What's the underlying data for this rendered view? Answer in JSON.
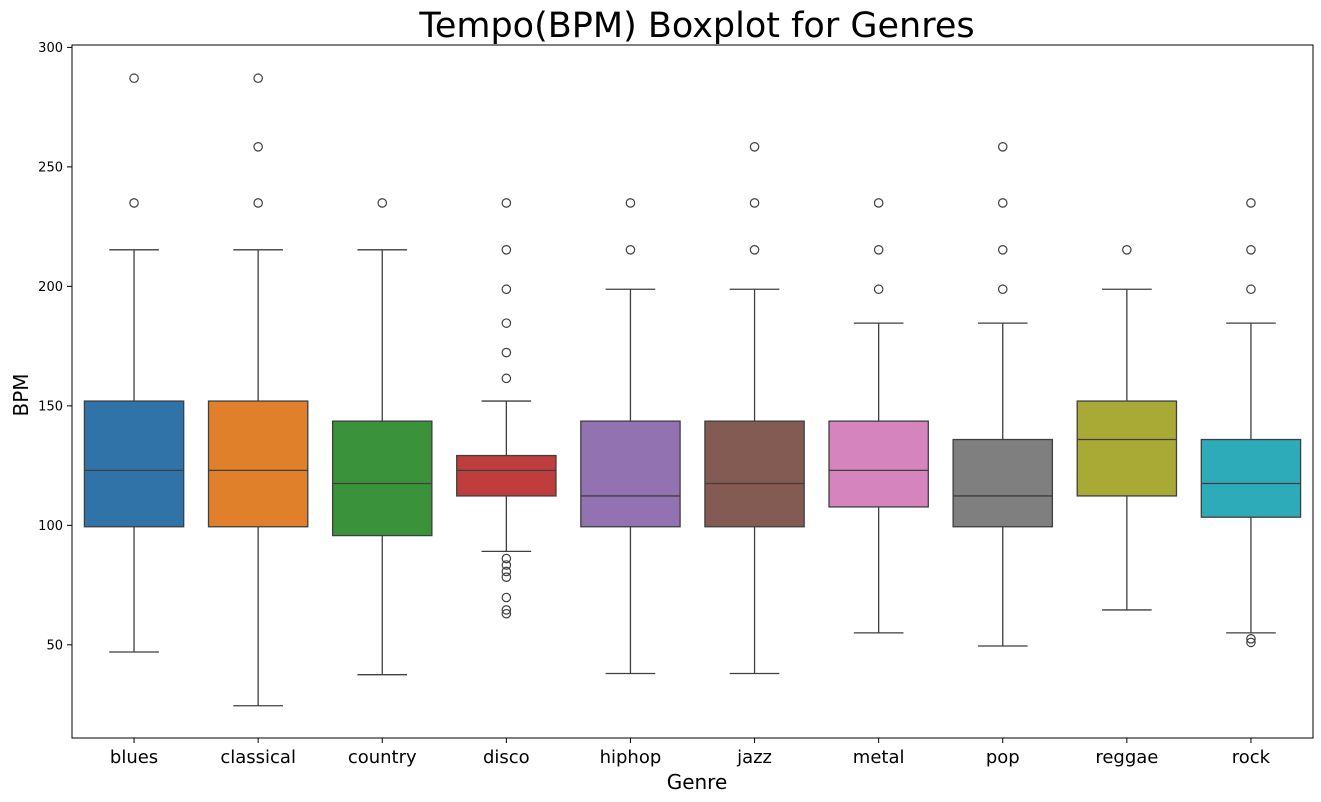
{
  "chart_data": {
    "type": "boxplot",
    "title": "Tempo(BPM) Boxplot for Genres",
    "xlabel": "Genre",
    "ylabel": "BPM",
    "ylim": [
      11,
      301
    ],
    "yticks": [
      50,
      100,
      150,
      200,
      250,
      300
    ],
    "grid": false,
    "legend": "none",
    "categories": [
      "blues",
      "classical",
      "country",
      "disco",
      "hiphop",
      "jazz",
      "metal",
      "pop",
      "reggae",
      "rock"
    ],
    "series": [
      {
        "category": "blues",
        "color": "#2f73a8",
        "whisker_low": 47,
        "q1": 99.4,
        "median": 123,
        "q3": 152,
        "whisker_high": 215.3,
        "outliers": [
          234.9,
          287.1
        ]
      },
      {
        "category": "classical",
        "color": "#e1802b",
        "whisker_low": 24.5,
        "q1": 99.4,
        "median": 123,
        "q3": 152,
        "whisker_high": 215.3,
        "outliers": [
          234.9,
          258.4,
          287.1
        ]
      },
      {
        "category": "country",
        "color": "#3a923a",
        "whisker_low": 37.5,
        "q1": 95.7,
        "median": 117.5,
        "q3": 143.6,
        "whisker_high": 215.3,
        "outliers": [
          234.9
        ]
      },
      {
        "category": "disco",
        "color": "#c03d3e",
        "whisker_low": 89.1,
        "q1": 112.3,
        "median": 123,
        "q3": 129.2,
        "whisker_high": 152,
        "outliers": [
          63,
          64.6,
          69.8,
          78.3,
          80.7,
          83.4,
          86.1,
          161.5,
          172.3,
          184.6,
          198.8,
          215.3,
          234.9
        ]
      },
      {
        "category": "hiphop",
        "color": "#9372b2",
        "whisker_low": 38,
        "q1": 99.4,
        "median": 112.3,
        "q3": 143.6,
        "whisker_high": 198.8,
        "outliers": [
          215.3,
          234.9
        ]
      },
      {
        "category": "jazz",
        "color": "#845b53",
        "whisker_low": 38,
        "q1": 99.4,
        "median": 117.5,
        "q3": 143.6,
        "whisker_high": 198.8,
        "outliers": [
          215.3,
          234.9,
          258.4
        ]
      },
      {
        "category": "metal",
        "color": "#d684bd",
        "whisker_low": 55,
        "q1": 107.7,
        "median": 123,
        "q3": 143.6,
        "whisker_high": 184.6,
        "outliers": [
          198.8,
          215.3,
          234.9
        ]
      },
      {
        "category": "pop",
        "color": "#7f7f7f",
        "whisker_low": 49.5,
        "q1": 99.4,
        "median": 112.3,
        "q3": 135.9,
        "whisker_high": 184.6,
        "outliers": [
          198.8,
          215.3,
          234.9,
          258.4
        ]
      },
      {
        "category": "reggae",
        "color": "#a9aa35",
        "whisker_low": 64.6,
        "q1": 112.3,
        "median": 135.9,
        "q3": 152,
        "whisker_high": 198.8,
        "outliers": [
          215.3
        ]
      },
      {
        "category": "rock",
        "color": "#2eabb8",
        "whisker_low": 55,
        "q1": 103.4,
        "median": 117.5,
        "q3": 135.9,
        "whisker_high": 184.6,
        "outliers": [
          51,
          52.5,
          198.8,
          215.3,
          234.9
        ]
      }
    ]
  }
}
